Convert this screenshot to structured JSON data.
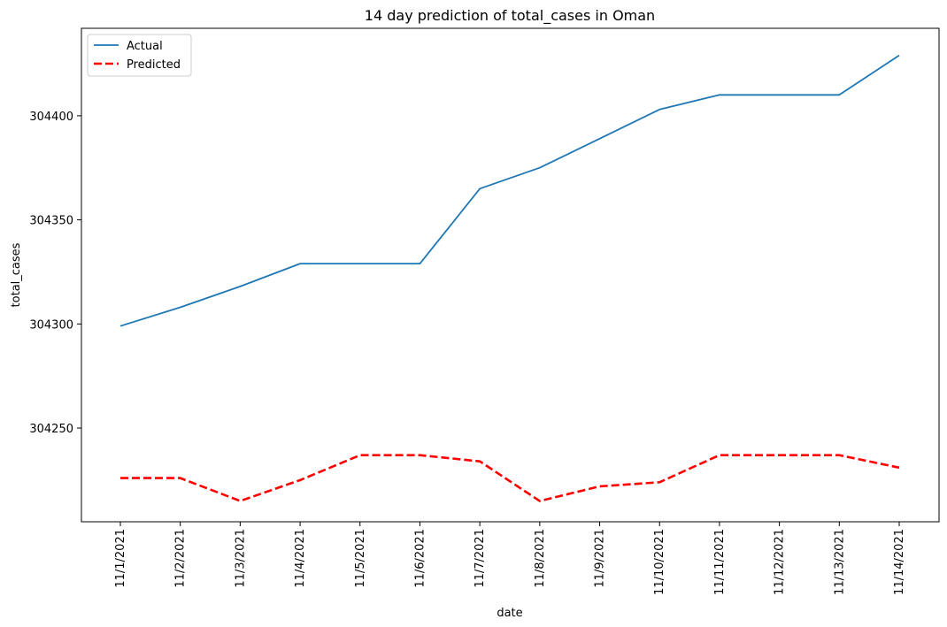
{
  "chart_data": {
    "type": "line",
    "title": "14 day prediction of total_cases in Oman",
    "xlabel": "date",
    "ylabel": "total_cases",
    "x": [
      "11/1/2021",
      "11/2/2021",
      "11/3/2021",
      "11/4/2021",
      "11/5/2021",
      "11/6/2021",
      "11/7/2021",
      "11/8/2021",
      "11/9/2021",
      "11/10/2021",
      "11/11/2021",
      "11/12/2021",
      "11/13/2021",
      "11/14/2021"
    ],
    "ylim": [
      304205,
      304442
    ],
    "yticks": [
      304250,
      304300,
      304350,
      304400
    ],
    "grid": false,
    "legend_position": "top-left",
    "series": [
      {
        "name": "Actual",
        "color": "#1f77b4",
        "style": "solid",
        "values": [
          304299,
          304308,
          304318,
          304329,
          304329,
          304329,
          304365,
          304375,
          304389,
          304403,
          304410,
          304410,
          304410,
          304429
        ]
      },
      {
        "name": "Predicted",
        "color": "#ff0000",
        "style": "dashed",
        "values": [
          304226,
          304226,
          304215,
          304225,
          304237,
          304237,
          304234,
          304215,
          304222,
          304224,
          304237,
          304237,
          304237,
          304231
        ]
      }
    ]
  }
}
